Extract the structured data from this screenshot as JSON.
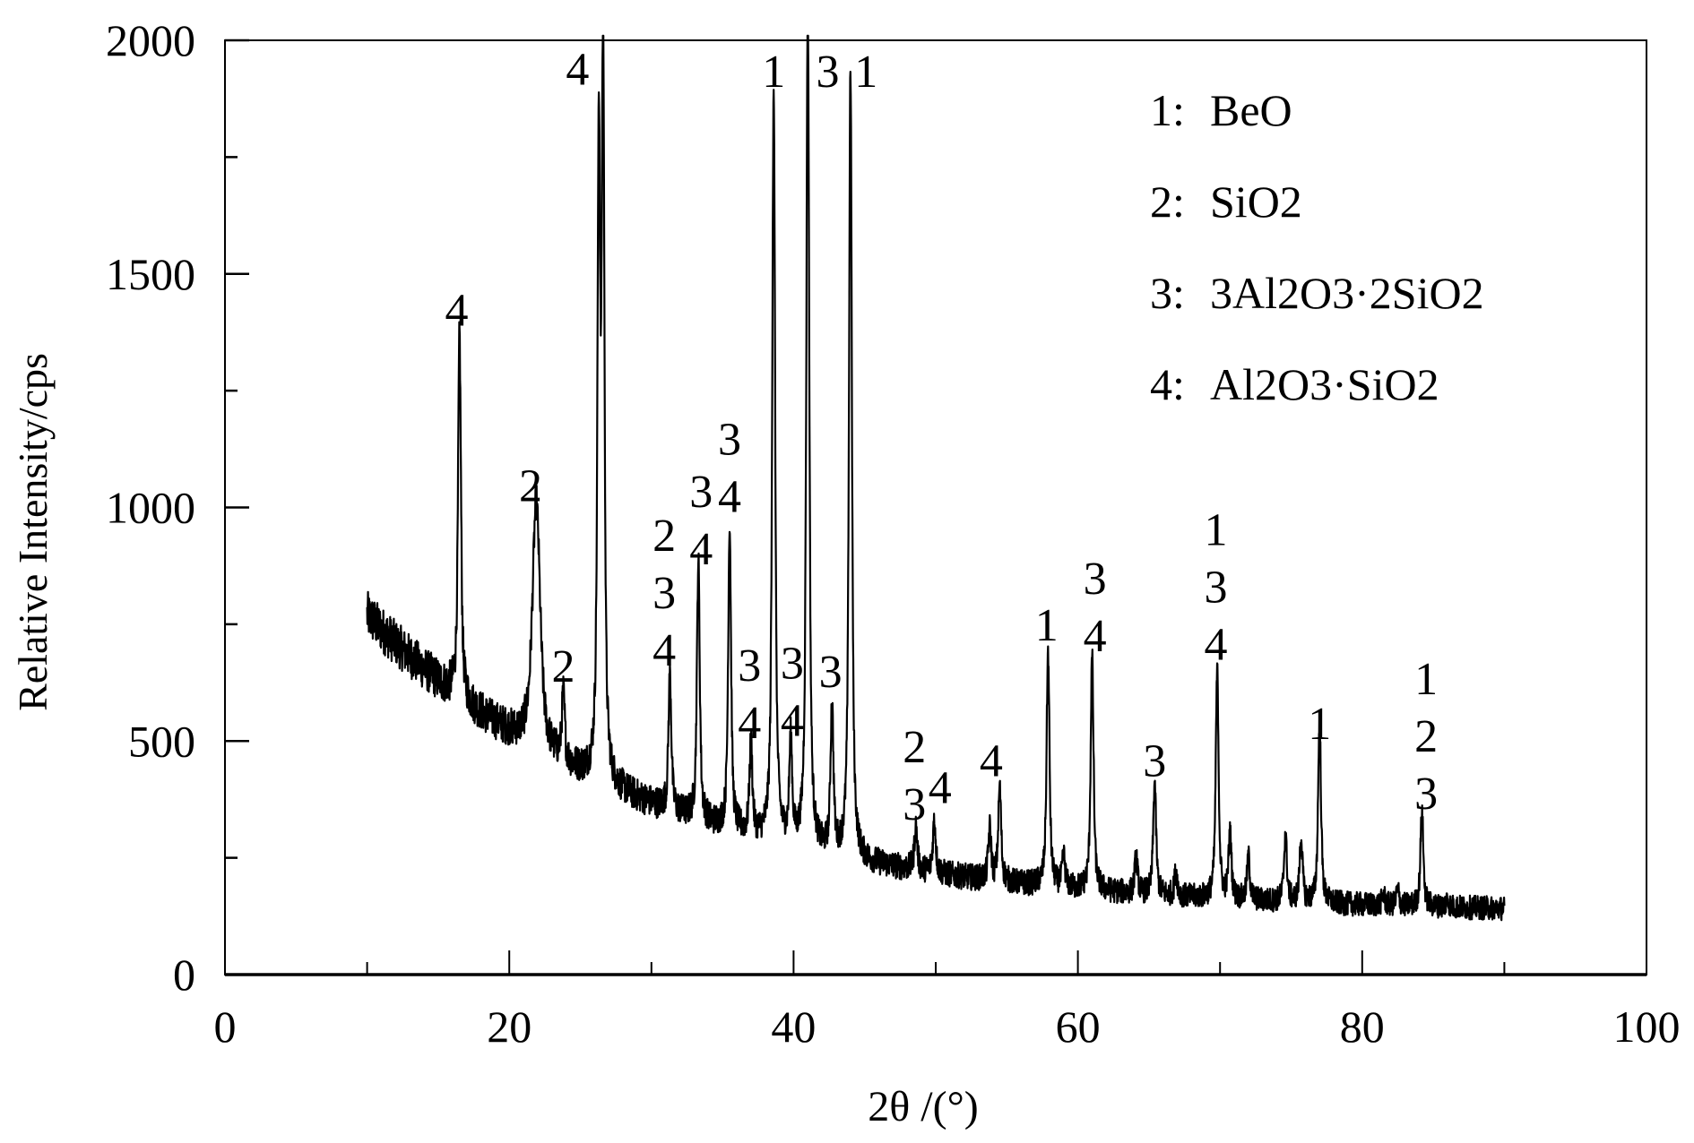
{
  "chart_data": {
    "type": "line",
    "title": "",
    "xlabel": "2θ /(°)",
    "ylabel": "Relative Intensity/cps",
    "xlim": [
      0,
      100
    ],
    "ylim": [
      0,
      2000
    ],
    "x_ticks": [
      0,
      20,
      40,
      60,
      80,
      100
    ],
    "x_tick_labels": [
      "0",
      "20",
      "40",
      "60",
      "80",
      "100"
    ],
    "x_minor_ticks": [
      10,
      30,
      50,
      70,
      90
    ],
    "y_ticks": [
      0,
      500,
      1000,
      1500,
      2000
    ],
    "y_tick_labels": [
      "0",
      "500",
      "1000",
      "1500",
      "2000"
    ],
    "y_minor_ticks": [
      250,
      750,
      1250,
      1750
    ],
    "grid": false,
    "line_color": "#000000",
    "scan_range": [
      10,
      90
    ],
    "background_start": 770,
    "background_end": 130,
    "peaks": [
      {
        "x": 16.5,
        "y": 1370
      },
      {
        "x": 21.9,
        "y": 1010
      },
      {
        "x": 23.8,
        "y": 590
      },
      {
        "x": 26.3,
        "y": 1750
      },
      {
        "x": 26.6,
        "y": 1970
      },
      {
        "x": 31.3,
        "y": 640
      },
      {
        "x": 33.3,
        "y": 880
      },
      {
        "x": 35.5,
        "y": 960
      },
      {
        "x": 37.0,
        "y": 490
      },
      {
        "x": 38.6,
        "y": 1900
      },
      {
        "x": 39.8,
        "y": 490
      },
      {
        "x": 41.0,
        "y": 2100
      },
      {
        "x": 42.7,
        "y": 570
      },
      {
        "x": 44.0,
        "y": 1940
      },
      {
        "x": 48.6,
        "y": 315
      },
      {
        "x": 49.9,
        "y": 330
      },
      {
        "x": 53.8,
        "y": 310
      },
      {
        "x": 54.5,
        "y": 400
      },
      {
        "x": 57.9,
        "y": 690
      },
      {
        "x": 59.0,
        "y": 250
      },
      {
        "x": 61.0,
        "y": 680
      },
      {
        "x": 64.1,
        "y": 250
      },
      {
        "x": 65.4,
        "y": 410
      },
      {
        "x": 66.9,
        "y": 220
      },
      {
        "x": 69.8,
        "y": 650
      },
      {
        "x": 70.7,
        "y": 300
      },
      {
        "x": 72.0,
        "y": 250
      },
      {
        "x": 74.6,
        "y": 300
      },
      {
        "x": 75.7,
        "y": 290
      },
      {
        "x": 77.0,
        "y": 545
      },
      {
        "x": 81.5,
        "y": 170
      },
      {
        "x": 82.5,
        "y": 180
      },
      {
        "x": 84.2,
        "y": 350
      },
      {
        "x": 86.0,
        "y": 160
      }
    ],
    "annotations": [
      {
        "x": 16.3,
        "y": 1389,
        "lines": [
          "4"
        ]
      },
      {
        "x": 21.5,
        "y": 1013,
        "lines": [
          "2"
        ]
      },
      {
        "x": 23.8,
        "y": 627,
        "lines": [
          "2"
        ]
      },
      {
        "x": 24.8,
        "y": 1905,
        "lines": [
          "4"
        ]
      },
      {
        "x": 30.9,
        "y": 662,
        "lines": [
          "2",
          "3",
          "4"
        ]
      },
      {
        "x": 33.5,
        "y": 878,
        "lines": [
          "3",
          "4"
        ]
      },
      {
        "x": 35.5,
        "y": 990,
        "lines": [
          "3",
          "4"
        ]
      },
      {
        "x": 36.9,
        "y": 506,
        "lines": [
          "3",
          "4"
        ]
      },
      {
        "x": 38.6,
        "y": 1900,
        "lines": [
          "1"
        ]
      },
      {
        "x": 39.9,
        "y": 511,
        "lines": [
          "3",
          "4"
        ]
      },
      {
        "x": 42.4,
        "y": 1900,
        "lines": [
          "3"
        ]
      },
      {
        "x": 45.1,
        "y": 1900,
        "lines": [
          "1"
        ]
      },
      {
        "x": 42.6,
        "y": 616,
        "lines": [
          "3"
        ]
      },
      {
        "x": 48.5,
        "y": 332,
        "lines": [
          "2",
          "3"
        ]
      },
      {
        "x": 50.3,
        "y": 367,
        "lines": [
          "4"
        ]
      },
      {
        "x": 53.9,
        "y": 425,
        "lines": [
          "4"
        ]
      },
      {
        "x": 57.8,
        "y": 715,
        "lines": [
          "1"
        ]
      },
      {
        "x": 61.2,
        "y": 692,
        "lines": [
          "3",
          "4"
        ]
      },
      {
        "x": 65.4,
        "y": 425,
        "lines": [
          "3"
        ]
      },
      {
        "x": 69.7,
        "y": 674,
        "lines": [
          "1",
          "3",
          "4"
        ]
      },
      {
        "x": 77.0,
        "y": 504,
        "lines": [
          "1"
        ]
      },
      {
        "x": 84.5,
        "y": 355,
        "lines": [
          "1",
          "2",
          "3"
        ]
      }
    ],
    "legend": {
      "placement": "top-right",
      "entries": [
        {
          "key": "1",
          "label": "BeO"
        },
        {
          "key": "2",
          "label": "SiO2"
        },
        {
          "key": "3",
          "label": "3Al2O3·2SiO2"
        },
        {
          "key": "4",
          "label": "Al2O3·SiO2"
        }
      ]
    }
  }
}
